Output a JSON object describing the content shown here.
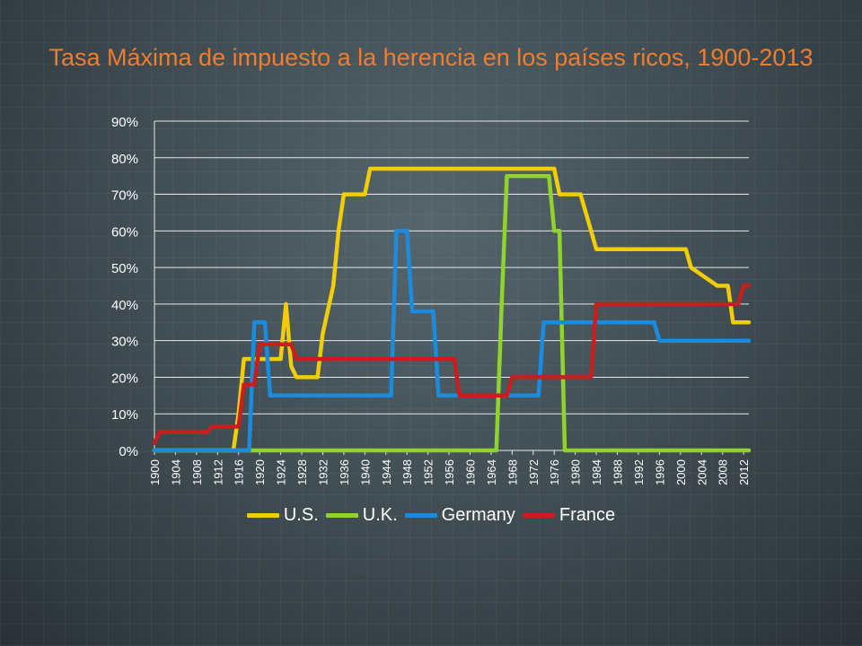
{
  "slide": {
    "title": "Tasa Máxima de impuesto a la herencia en los países ricos, 1900-2013"
  },
  "chart_data": {
    "type": "line",
    "title": "Tasa Máxima de impuesto a la herencia en los países ricos, 1900-2013",
    "xlabel": "",
    "ylabel": "",
    "xlim": [
      1900,
      2013
    ],
    "ylim": [
      0,
      90
    ],
    "y_ticks": [
      0,
      10,
      20,
      30,
      40,
      50,
      60,
      70,
      80,
      90
    ],
    "y_tick_labels": [
      "0%",
      "10%",
      "20%",
      "30%",
      "40%",
      "50%",
      "60%",
      "70%",
      "80%",
      "90%"
    ],
    "x_ticks": [
      1900,
      1904,
      1908,
      1912,
      1916,
      1920,
      1924,
      1928,
      1932,
      1936,
      1940,
      1944,
      1948,
      1952,
      1956,
      1960,
      1964,
      1968,
      1972,
      1976,
      1980,
      1984,
      1988,
      1992,
      1996,
      2000,
      2004,
      2008,
      2012
    ],
    "grid": "horizontal",
    "legend_position": "bottom",
    "series": [
      {
        "name": "U.S.",
        "color": "#f2cd00",
        "points": [
          [
            1900,
            0
          ],
          [
            1915,
            0
          ],
          [
            1916,
            10
          ],
          [
            1917,
            25
          ],
          [
            1918,
            25
          ],
          [
            1919,
            25
          ],
          [
            1924,
            25
          ],
          [
            1925,
            40
          ],
          [
            1926,
            23
          ],
          [
            1927,
            20
          ],
          [
            1931,
            20
          ],
          [
            1932,
            32
          ],
          [
            1934,
            45
          ],
          [
            1935,
            60
          ],
          [
            1936,
            70
          ],
          [
            1940,
            70
          ],
          [
            1941,
            77
          ],
          [
            1976,
            77
          ],
          [
            1977,
            70
          ],
          [
            1981,
            70
          ],
          [
            1982,
            65
          ],
          [
            1984,
            55
          ],
          [
            2001,
            55
          ],
          [
            2002,
            50
          ],
          [
            2004,
            48
          ],
          [
            2007,
            45
          ],
          [
            2009,
            45
          ],
          [
            2010,
            35
          ],
          [
            2013,
            35
          ]
        ]
      },
      {
        "name": "U.K.",
        "color": "#8fd32c",
        "points": [
          [
            1900,
            0
          ],
          [
            1965,
            0
          ],
          [
            1966,
            40
          ],
          [
            1967,
            75
          ],
          [
            1975,
            75
          ],
          [
            1976,
            60
          ],
          [
            1977,
            60
          ],
          [
            1978,
            0
          ],
          [
            2013,
            0
          ]
        ]
      },
      {
        "name": "Germany",
        "color": "#1a8ce0",
        "points": [
          [
            1900,
            0
          ],
          [
            1918,
            0
          ],
          [
            1919,
            35
          ],
          [
            1921,
            35
          ],
          [
            1922,
            15
          ],
          [
            1945,
            15
          ],
          [
            1946,
            60
          ],
          [
            1948,
            60
          ],
          [
            1949,
            38
          ],
          [
            1953,
            38
          ],
          [
            1954,
            15
          ],
          [
            1973,
            15
          ],
          [
            1974,
            35
          ],
          [
            1995,
            35
          ],
          [
            1996,
            30
          ],
          [
            2013,
            30
          ]
        ]
      },
      {
        "name": "France",
        "color": "#c81e1e",
        "points": [
          [
            1900,
            2
          ],
          [
            1901,
            5
          ],
          [
            1910,
            5
          ],
          [
            1911,
            6.5
          ],
          [
            1916,
            6.5
          ],
          [
            1917,
            18
          ],
          [
            1919,
            18
          ],
          [
            1920,
            29
          ],
          [
            1926,
            29
          ],
          [
            1927,
            25
          ],
          [
            1957,
            25
          ],
          [
            1958,
            15
          ],
          [
            1967,
            15
          ],
          [
            1968,
            20
          ],
          [
            1983,
            20
          ],
          [
            1984,
            40
          ],
          [
            2011,
            40
          ],
          [
            2012,
            45
          ],
          [
            2013,
            45
          ]
        ]
      }
    ]
  }
}
